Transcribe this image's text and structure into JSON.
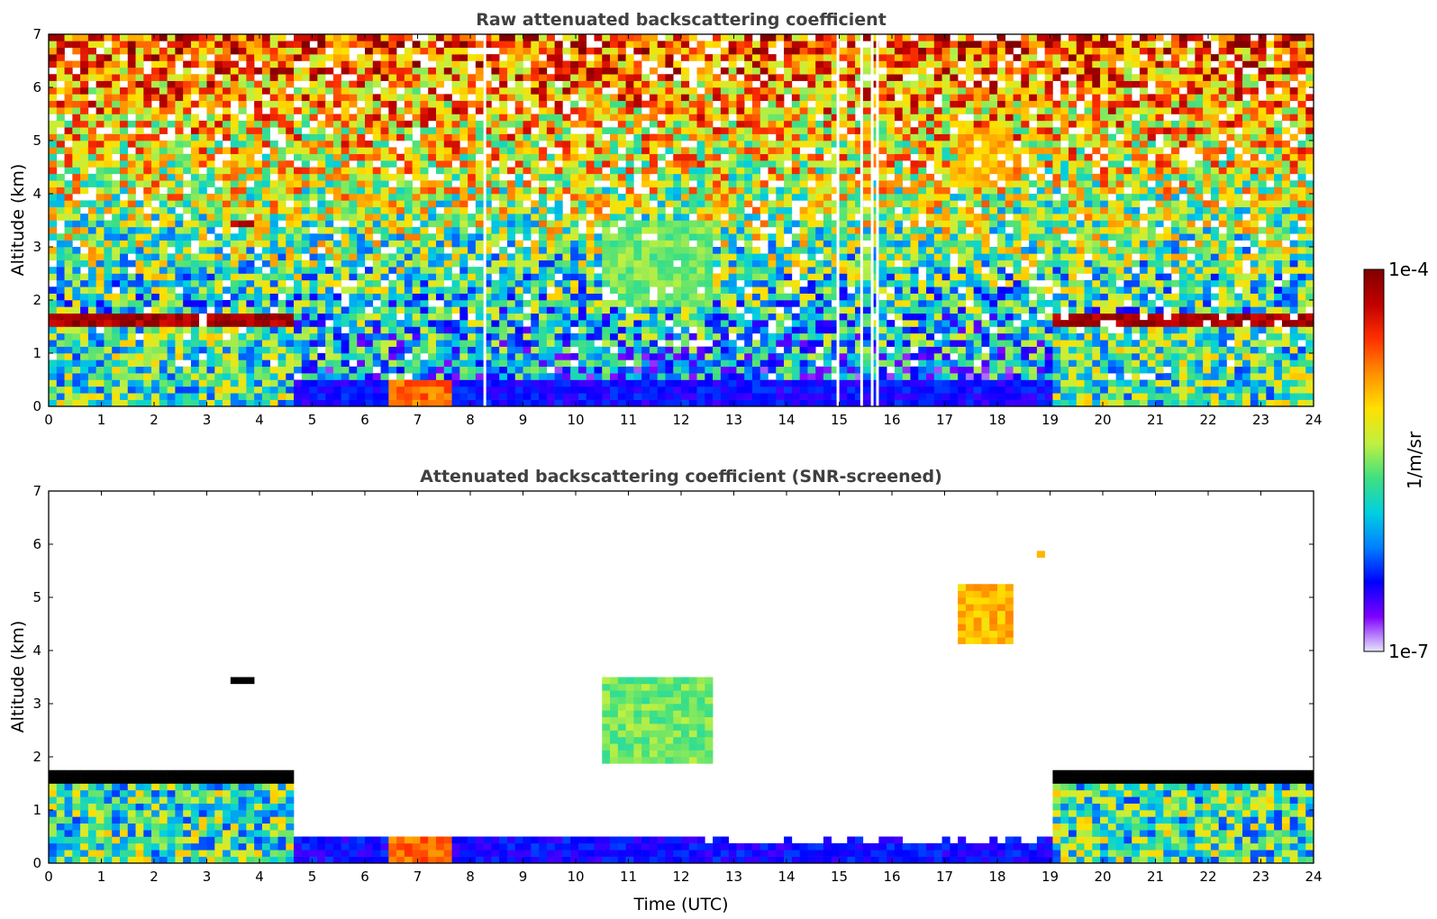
{
  "chart_data": [
    {
      "type": "heatmap",
      "title": "Raw attenuated backscattering coefficient",
      "xlabel": "",
      "ylabel": "Altitude (km)",
      "xlim": [
        0,
        24
      ],
      "ylim": [
        0,
        7
      ],
      "x_ticks": [
        "0",
        "1",
        "2",
        "3",
        "4",
        "5",
        "6",
        "7",
        "8",
        "9",
        "10",
        "11",
        "12",
        "13",
        "14",
        "15",
        "16",
        "17",
        "18",
        "19",
        "20",
        "21",
        "22",
        "23",
        "24"
      ],
      "y_ticks": [
        "0",
        "1",
        "2",
        "3",
        "4",
        "5",
        "6",
        "7"
      ],
      "features": [
        {
          "kind": "layer",
          "x": [
            0,
            4.7
          ],
          "y": [
            1.5,
            1.7
          ],
          "level": 1.0
        },
        {
          "kind": "layer",
          "x": [
            19.1,
            24
          ],
          "y": [
            1.45,
            1.7
          ],
          "level": 1.0
        },
        {
          "kind": "patch",
          "x": [
            3.5,
            3.95
          ],
          "y": [
            3.38,
            3.52
          ],
          "level": 0.96
        },
        {
          "kind": "patch",
          "x": [
            18.75,
            18.95
          ],
          "y": [
            5.7,
            5.9
          ],
          "level": 0.72
        },
        {
          "kind": "patch",
          "x": [
            16.5,
            16.7
          ],
          "y": [
            3.8,
            4.0
          ],
          "level": 0.74
        },
        {
          "kind": "patch",
          "x": [
            17.3,
            18.3
          ],
          "y": [
            4.1,
            5.3
          ],
          "level": 0.74
        },
        {
          "kind": "patch",
          "x": [
            6.5,
            7.7
          ],
          "y": [
            0.0,
            0.5
          ],
          "level": 0.82
        },
        {
          "kind": "patch",
          "x": [
            10.5,
            12.6
          ],
          "y": [
            1.9,
            3.5
          ],
          "level": 0.55
        }
      ],
      "missing_data_x": [
        14.95,
        15.4,
        15.6,
        15.7,
        8.25
      ],
      "missing_data_y": [
        0,
        7
      ]
    },
    {
      "type": "heatmap",
      "title": "Attenuated backscattering coefficient (SNR-screened)",
      "xlabel": "Time (UTC)",
      "ylabel": "Altitude (km)",
      "xlim": [
        0,
        24
      ],
      "ylim": [
        0,
        7
      ],
      "x_ticks": [
        "0",
        "1",
        "2",
        "3",
        "4",
        "5",
        "6",
        "7",
        "8",
        "9",
        "10",
        "11",
        "12",
        "13",
        "14",
        "15",
        "16",
        "17",
        "18",
        "19",
        "20",
        "21",
        "22",
        "23",
        "24"
      ],
      "y_ticks": [
        "0",
        "1",
        "2",
        "3",
        "4",
        "5",
        "6",
        "7"
      ],
      "features": [
        {
          "kind": "layer",
          "x": [
            0,
            4.7
          ],
          "y": [
            1.5,
            1.7
          ],
          "level": 1.0
        },
        {
          "kind": "layer",
          "x": [
            19.1,
            24
          ],
          "y": [
            1.45,
            1.7
          ],
          "level": 1.0
        },
        {
          "kind": "patch",
          "x": [
            3.5,
            3.95
          ],
          "y": [
            3.38,
            3.52
          ],
          "level": 1.0
        },
        {
          "kind": "patch",
          "x": [
            18.75,
            18.95
          ],
          "y": [
            5.7,
            5.9
          ],
          "level": 0.72
        },
        {
          "kind": "patch",
          "x": [
            17.3,
            18.3
          ],
          "y": [
            4.1,
            5.3
          ],
          "level": 0.74
        },
        {
          "kind": "patch",
          "x": [
            6.5,
            7.7
          ],
          "y": [
            0.0,
            0.5
          ],
          "level": 0.82
        },
        {
          "kind": "patch",
          "x": [
            10.5,
            12.6
          ],
          "y": [
            1.9,
            3.5
          ],
          "level": 0.55
        }
      ]
    }
  ],
  "colorbar": {
    "label": "1/m/sr",
    "max_label": "1e-4",
    "min_label": "1e-7",
    "colors": [
      "#e6e6fa",
      "#7f00ff",
      "#0000ff",
      "#0080ff",
      "#00d0e0",
      "#40e080",
      "#c0f040",
      "#ffe000",
      "#ff9000",
      "#ff3000",
      "#c00000",
      "#800000"
    ]
  }
}
